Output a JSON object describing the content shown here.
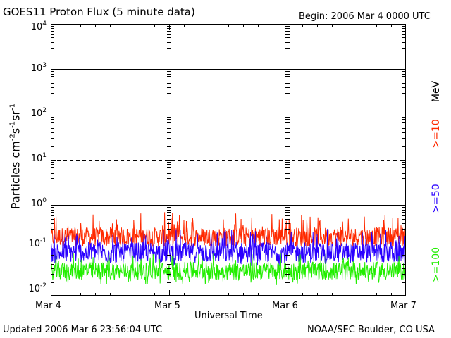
{
  "header": {
    "title": "GOES11 Proton Flux (5 minute data)",
    "begin": "Begin: 2006 Mar 4 0000 UTC"
  },
  "footer": {
    "updated": "Updated 2006 Mar  6 23:56:04 UTC",
    "credit": "NOAA/SEC Boulder, CO USA"
  },
  "colors": {
    "ge10": "#ff2a00",
    "ge50": "#2a00ff",
    "ge100": "#22ee00"
  },
  "chart_data": {
    "type": "line",
    "xlabel": "Universal Time",
    "ylabel": {
      "base": "Particles cm",
      "e1": "-2",
      "m2": "s",
      "e2": "-1",
      "m3": "sr",
      "e3": "-1"
    },
    "yscale": "log",
    "ylim": [
      0.01,
      10000
    ],
    "yticks": [
      {
        "base": "10",
        "exp": "-2"
      },
      {
        "base": "10",
        "exp": "-1"
      },
      {
        "base": "10",
        "exp": "0"
      },
      {
        "base": "10",
        "exp": "1"
      },
      {
        "base": "10",
        "exp": "2"
      },
      {
        "base": "10",
        "exp": "3"
      },
      {
        "base": "10",
        "exp": "4"
      }
    ],
    "xticks": [
      "Mar 4",
      "Mar 5",
      "Mar 6",
      "Mar 7"
    ],
    "xlim_days": [
      0,
      3
    ],
    "grid": {
      "solid": [
        1,
        100,
        1000
      ],
      "dashed": [
        10
      ]
    },
    "series": [
      {
        "name": ">=10",
        "unit": "MeV",
        "color_key": "ge10",
        "typical": 0.2,
        "range": [
          0.12,
          0.7
        ]
      },
      {
        "name": ">=50",
        "color_key": "ge50",
        "typical": 0.09,
        "range": [
          0.045,
          0.3
        ]
      },
      {
        "name": ">=100",
        "color_key": "ge100",
        "typical": 0.035,
        "range": [
          0.017,
          0.09
        ]
      }
    ],
    "legend_position": "right-vertical"
  }
}
